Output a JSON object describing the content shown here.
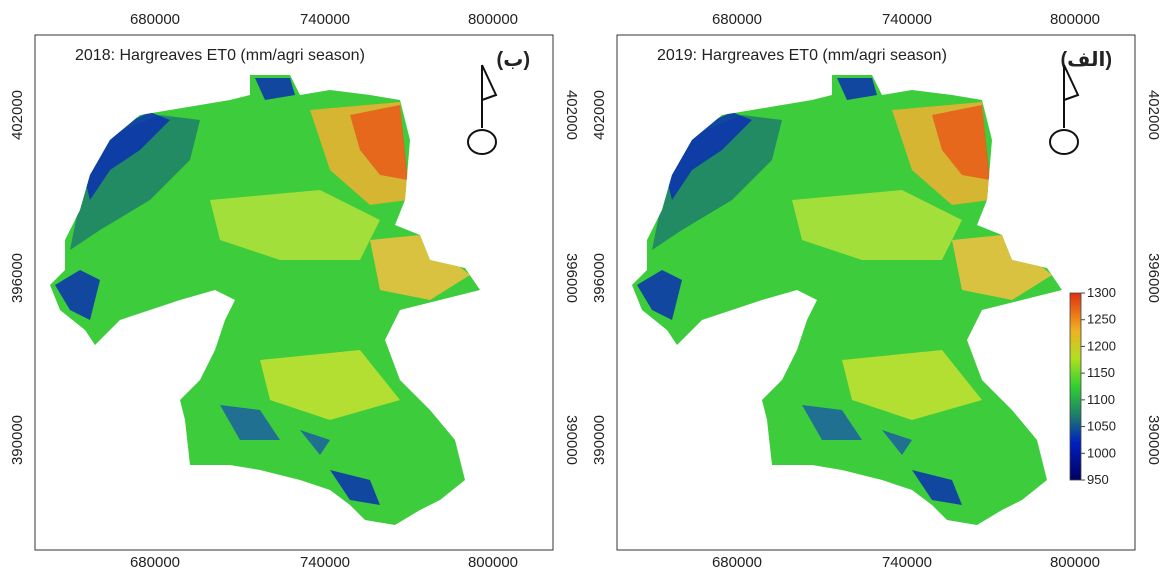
{
  "panels": [
    {
      "title": "2018: Hargreaves ET0 (mm/agri season)",
      "label": "(ب)",
      "xticks": [
        "680000",
        "740000",
        "800000"
      ],
      "yticks": [
        "402000",
        "396000",
        "390000"
      ]
    },
    {
      "title": "2019: Hargreaves ET0 (mm/agri season)",
      "label": "(الف)",
      "xticks": [
        "680000",
        "740000",
        "800000"
      ],
      "yticks": [
        "402000",
        "396000",
        "390000"
      ]
    }
  ],
  "colorbar": {
    "ticks": [
      950,
      1000,
      1050,
      1100,
      1150,
      1200,
      1250,
      1300
    ],
    "lim": [
      950,
      1300
    ]
  }
}
